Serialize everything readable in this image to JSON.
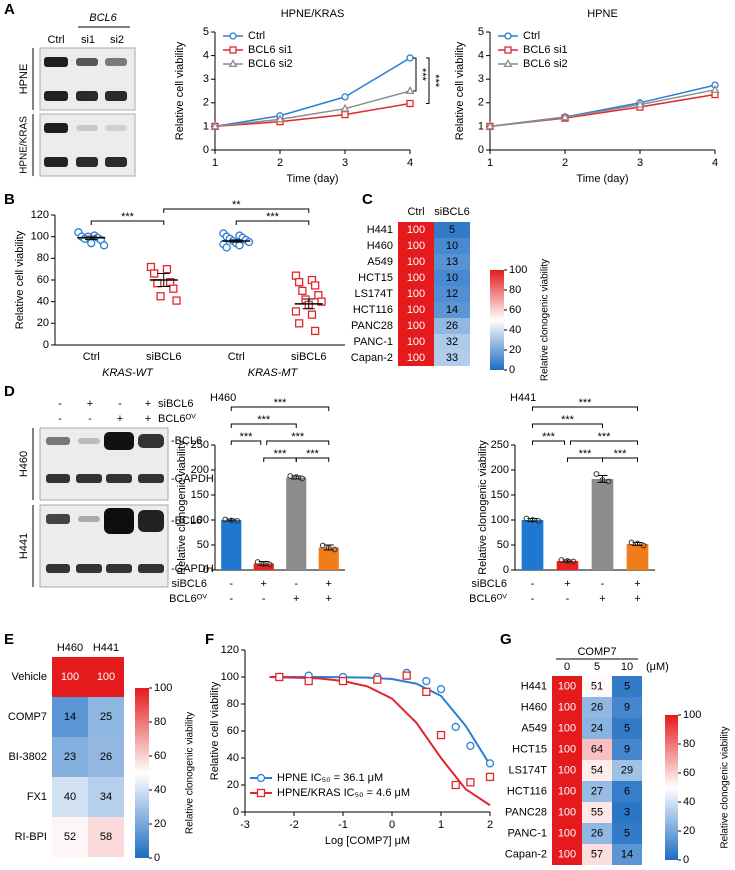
{
  "blots": [
    {
      "panel": "A",
      "group_label": "BCL6",
      "columns": [
        "Ctrl",
        "si1",
        "si2"
      ],
      "rows": [
        "HPNE",
        "HPNE/KRAS"
      ]
    },
    {
      "panel": "D",
      "conditions": [
        {
          "label": "siBCL6",
          "signs": [
            "-",
            "+",
            "-",
            "+"
          ]
        },
        {
          "label": "BCL6ᴼⱽ",
          "signs": [
            "-",
            "-",
            "+",
            "+"
          ]
        }
      ],
      "cell_lines": [
        "H460",
        "H441"
      ],
      "bands": [
        "-BCL6",
        "-GAPDH"
      ]
    }
  ],
  "chart_data": [
    {
      "type": "line",
      "title": "HPNE/KRAS",
      "x": [
        1,
        2,
        3,
        4
      ],
      "xlim": [
        1,
        4
      ],
      "xticks": [
        1,
        2,
        3,
        4
      ],
      "ylim": [
        0,
        5
      ],
      "yticks": [
        0,
        1,
        2,
        3,
        4,
        5
      ],
      "xlabel": "Time (day)",
      "ylabel": "Relative cell viability",
      "series": [
        {
          "name": "Ctrl",
          "color": "#2a7fd4",
          "marker": "circle",
          "values": [
            1,
            1.45,
            2.25,
            3.9
          ]
        },
        {
          "name": "BCL6 si1",
          "color": "#e3262b",
          "marker": "square",
          "values": [
            1,
            1.2,
            1.5,
            1.97
          ]
        },
        {
          "name": "BCL6 si2",
          "color": "#8c8c8c",
          "marker": "triangle",
          "values": [
            1,
            1.3,
            1.75,
            2.5
          ]
        }
      ],
      "annotations": [
        "***",
        "***"
      ]
    },
    {
      "type": "line",
      "title": "HPNE",
      "x": [
        1,
        2,
        3,
        4
      ],
      "xlim": [
        1,
        4
      ],
      "xticks": [
        1,
        2,
        3,
        4
      ],
      "ylim": [
        0,
        5
      ],
      "yticks": [
        0,
        1,
        2,
        3,
        4,
        5
      ],
      "xlabel": "Time (day)",
      "ylabel": "Relative cell viability",
      "series": [
        {
          "name": "Ctrl",
          "color": "#2a7fd4",
          "marker": "circle",
          "values": [
            1,
            1.4,
            2.0,
            2.75
          ]
        },
        {
          "name": "BCL6 si1",
          "color": "#e3262b",
          "marker": "square",
          "values": [
            1,
            1.35,
            1.82,
            2.35
          ]
        },
        {
          "name": "BCL6 si2",
          "color": "#8c8c8c",
          "marker": "triangle",
          "values": [
            1,
            1.38,
            1.92,
            2.55
          ]
        }
      ]
    },
    {
      "type": "dot",
      "panel": "B",
      "ylabel": "Relative cell viability",
      "ylim": [
        0,
        120
      ],
      "yticks": [
        0,
        20,
        40,
        60,
        80,
        100,
        120
      ],
      "categories": [
        "Ctrl",
        "siBCL6",
        "Ctrl",
        "siBCL6"
      ],
      "groups": [
        "KRAS-WT",
        "KRAS-MT"
      ],
      "colors": [
        "#2a7fd4",
        "#e3262b",
        "#2a7fd4",
        "#e3262b"
      ],
      "markers": [
        "circle",
        "square",
        "circle",
        "square"
      ],
      "points": [
        [
          104,
          101,
          100,
          99,
          98,
          97,
          100,
          92,
          94
        ],
        [
          72,
          70,
          66,
          58,
          57,
          52,
          45,
          41
        ],
        [
          103,
          101,
          100,
          99,
          98,
          97,
          96,
          95,
          94,
          93,
          92,
          90
        ],
        [
          64,
          60,
          58,
          55,
          50,
          46,
          42,
          40,
          37,
          31,
          28,
          20,
          13
        ]
      ],
      "means": [
        99,
        60,
        96,
        38
      ],
      "sems": [
        1.5,
        6,
        1,
        4.5
      ],
      "annotations": [
        "***",
        "**",
        "***"
      ]
    },
    {
      "type": "heatmap",
      "panel": "C",
      "columns": [
        "Ctrl",
        "siBCL6"
      ],
      "rows": [
        "H441",
        "H460",
        "A549",
        "HCT15",
        "LS174T",
        "HCT116",
        "PANC28",
        "PANC-1",
        "Capan-2"
      ],
      "values": [
        [
          100,
          5
        ],
        [
          100,
          10
        ],
        [
          100,
          13
        ],
        [
          100,
          10
        ],
        [
          100,
          12
        ],
        [
          100,
          14
        ],
        [
          100,
          26
        ],
        [
          100,
          32
        ],
        [
          100,
          33
        ]
      ],
      "colors": [
        "#1c6cc3",
        "#ffffff",
        "#e41a1c"
      ],
      "colorbar": {
        "label": "Relative clonogenic viability",
        "lim": [
          0,
          100
        ],
        "ticks": [
          0,
          20,
          40,
          60,
          80,
          100
        ]
      }
    },
    {
      "type": "bar",
      "title": "H460",
      "ylabel": "Relative clonogenic viability",
      "ylim": [
        0,
        250
      ],
      "yticks": [
        0,
        50,
        100,
        150,
        200,
        250
      ],
      "values": [
        100,
        13,
        185,
        45
      ],
      "errors": [
        2,
        4,
        3,
        5
      ],
      "points": [
        [
          101,
          99,
          98
        ],
        [
          16,
          12,
          11
        ],
        [
          188,
          186,
          183
        ],
        [
          49,
          44,
          41
        ]
      ],
      "colors": [
        "#1f77d0",
        "#e8231f",
        "#8c8c8c",
        "#f07d1a"
      ],
      "conditions": [
        {
          "label": "siBCL6",
          "signs": [
            "-",
            "+",
            "-",
            "+"
          ]
        },
        {
          "label": "BCL6ᴼⱽ",
          "signs": [
            "-",
            "-",
            "+",
            "+"
          ]
        }
      ],
      "annotations": [
        "***",
        "***",
        "***",
        "***",
        "***",
        "***"
      ]
    },
    {
      "type": "bar",
      "title": "H441",
      "ylabel": "Relative clonogenic viability",
      "ylim": [
        0,
        250
      ],
      "yticks": [
        0,
        50,
        100,
        150,
        200,
        250
      ],
      "values": [
        100,
        18,
        182,
        52
      ],
      "errors": [
        3,
        2,
        7,
        3
      ],
      "points": [
        [
          103,
          100,
          98
        ],
        [
          20,
          18,
          17
        ],
        [
          192,
          180,
          177
        ],
        [
          55,
          53,
          49
        ]
      ],
      "colors": [
        "#1f77d0",
        "#e8231f",
        "#8c8c8c",
        "#f07d1a"
      ],
      "conditions": [
        {
          "label": "siBCL6",
          "signs": [
            "-",
            "+",
            "-",
            "+"
          ]
        },
        {
          "label": "BCL6ᴼⱽ",
          "signs": [
            "-",
            "-",
            "+",
            "+"
          ]
        }
      ],
      "annotations": [
        "***",
        "***",
        "***",
        "***",
        "***",
        "***"
      ]
    },
    {
      "type": "heatmap",
      "panel": "E",
      "columns": [
        "H460",
        "H441"
      ],
      "rows": [
        "Vehicle",
        "COMP7",
        "BI-3802",
        "FX1",
        "RI-BPI"
      ],
      "values": [
        [
          100,
          100
        ],
        [
          14,
          25
        ],
        [
          23,
          26
        ],
        [
          40,
          34
        ],
        [
          52,
          58
        ]
      ],
      "colors": [
        "#1c6cc3",
        "#ffffff",
        "#e41a1c"
      ],
      "colorbar": {
        "label": "Relative clonogenic viability",
        "lim": [
          0,
          100
        ],
        "ticks": [
          0,
          20,
          40,
          60,
          80,
          100
        ]
      }
    },
    {
      "type": "curve",
      "panel": "F",
      "xlabel": "Log [COMP7] μM",
      "ylabel": "Relative cell viability",
      "xlim": [
        -3,
        2
      ],
      "xticks": [
        -3,
        -2,
        -1,
        0,
        1,
        2
      ],
      "ylim": [
        0,
        120
      ],
      "yticks": [
        0,
        20,
        40,
        60,
        80,
        100,
        120
      ],
      "x": [
        -2.3,
        -1.7,
        -1,
        -0.3,
        0.3,
        0.7,
        1,
        1.3,
        1.6,
        2
      ],
      "fit_x": [
        -2.5,
        -2,
        -1.5,
        -1,
        -0.5,
        0,
        0.5,
        1,
        1.5,
        2
      ],
      "series": [
        {
          "name": "HPNE IC₅₀ = 36.1 μM",
          "color": "#2a7fd4",
          "marker": "circle",
          "values": [
            100,
            101,
            100,
            100,
            103,
            97,
            91,
            63,
            49,
            36
          ],
          "fit": [
            100,
            100,
            100,
            99.8,
            99.5,
            98.5,
            95,
            86,
            64,
            35
          ]
        },
        {
          "name": "HPNE/KRAS IC₅₀ = 4.6 μM",
          "color": "#e3262b",
          "marker": "square",
          "values": [
            100,
            97,
            97,
            98,
            101,
            89,
            57,
            20,
            22,
            26
          ],
          "fit": [
            100,
            99.5,
            99,
            97,
            93,
            84,
            66,
            40,
            17,
            5
          ]
        }
      ]
    },
    {
      "type": "heatmap",
      "panel": "G",
      "header": "COMP7",
      "unit": "(μM)",
      "columns": [
        "0",
        "5",
        "10"
      ],
      "rows": [
        "H441",
        "H460",
        "A549",
        "HCT15",
        "LS174T",
        "HCT116",
        "PANC28",
        "PANC-1",
        "Capan-2"
      ],
      "values": [
        [
          100,
          51,
          5
        ],
        [
          100,
          26,
          9
        ],
        [
          100,
          24,
          5
        ],
        [
          100,
          64,
          9
        ],
        [
          100,
          54,
          29
        ],
        [
          100,
          27,
          6
        ],
        [
          100,
          55,
          3
        ],
        [
          100,
          26,
          5
        ],
        [
          100,
          57,
          14
        ]
      ],
      "colors": [
        "#1c6cc3",
        "#ffffff",
        "#e41a1c"
      ],
      "colorbar": {
        "label": "Relative clonogenic viability",
        "lim": [
          0,
          100
        ],
        "ticks": [
          0,
          20,
          40,
          60,
          80,
          100
        ]
      }
    }
  ]
}
